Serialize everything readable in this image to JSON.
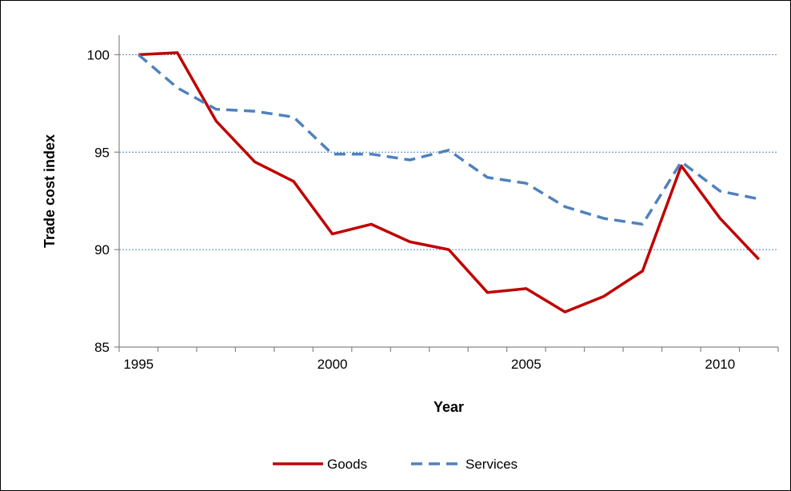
{
  "chart_data": {
    "type": "line",
    "title": "",
    "xlabel": "Year",
    "ylabel": "Trade cost index",
    "x": [
      1995,
      1996,
      1997,
      1998,
      1999,
      2000,
      2001,
      2002,
      2003,
      2004,
      2005,
      2006,
      2007,
      2008,
      2009,
      2010,
      2011
    ],
    "x_tick_labels": [
      "1995",
      "2000",
      "2005",
      "2010"
    ],
    "y_ticks": [
      85,
      90,
      95,
      100
    ],
    "y_tick_labels": [
      "85",
      "90",
      "95",
      "100"
    ],
    "xlim": [
      1994.5,
      2011.5
    ],
    "ylim": [
      85,
      101
    ],
    "grid": "horizontal dashed",
    "legend_position": "bottom",
    "series": [
      {
        "name": "Goods",
        "color": "#C00000",
        "line_style": "solid",
        "values": [
          100.0,
          100.1,
          96.6,
          94.5,
          93.5,
          90.8,
          91.3,
          90.4,
          90.0,
          87.8,
          88.0,
          86.8,
          87.6,
          88.9,
          94.3,
          91.6,
          89.5
        ]
      },
      {
        "name": "Services",
        "color": "#4F81BD",
        "line_style": "dashed",
        "values": [
          100.0,
          98.3,
          97.2,
          97.1,
          96.8,
          94.9,
          94.9,
          94.6,
          95.1,
          93.7,
          93.4,
          92.2,
          91.6,
          91.3,
          94.5,
          93.0,
          92.6
        ]
      }
    ]
  }
}
